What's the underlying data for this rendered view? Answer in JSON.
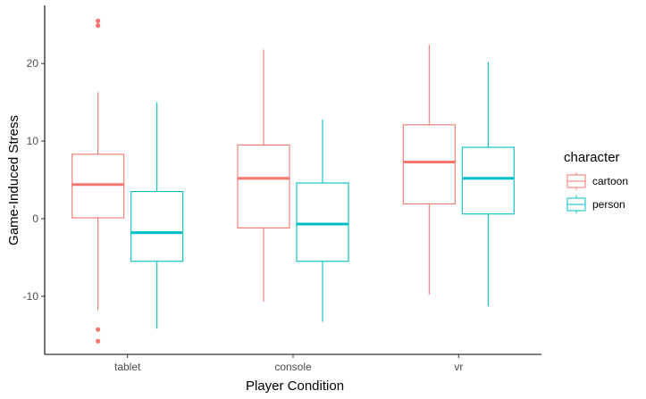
{
  "chart_data": {
    "type": "boxplot",
    "xlabel": "Player Condition",
    "ylabel": "Game-Induced Stress",
    "categories": [
      "tablet",
      "console",
      "vr"
    ],
    "y_ticks": [
      -10,
      0,
      10,
      20
    ],
    "y_tick_labels": [
      "-10",
      "0",
      "10",
      "20"
    ],
    "ylim": [
      -17.5,
      27.5
    ],
    "grid": false,
    "legend": {
      "title": "character",
      "position": "right"
    },
    "series": [
      {
        "name": "cartoon",
        "color": "#F8766D",
        "boxes": [
          {
            "category": "tablet",
            "whisker_low": -11.8,
            "q1": 0.1,
            "median": 4.4,
            "q3": 8.3,
            "whisker_high": 16.3,
            "outliers": [
              25.5,
              24.9,
              -14.3,
              -15.8
            ]
          },
          {
            "category": "console",
            "whisker_low": -10.7,
            "q1": -1.2,
            "median": 5.2,
            "q3": 9.5,
            "whisker_high": 21.8,
            "outliers": []
          },
          {
            "category": "vr",
            "whisker_low": -9.8,
            "q1": 1.9,
            "median": 7.3,
            "q3": 12.1,
            "whisker_high": 22.4,
            "outliers": []
          }
        ]
      },
      {
        "name": "person",
        "color": "#00BFC4",
        "boxes": [
          {
            "category": "tablet",
            "whisker_low": -14.2,
            "q1": -5.5,
            "median": -1.8,
            "q3": 3.5,
            "whisker_high": 15.0,
            "outliers": []
          },
          {
            "category": "console",
            "whisker_low": -13.3,
            "q1": -5.5,
            "median": -0.7,
            "q3": 4.6,
            "whisker_high": 12.8,
            "outliers": []
          },
          {
            "category": "vr",
            "whisker_low": -11.3,
            "q1": 0.6,
            "median": 5.2,
            "q3": 9.2,
            "whisker_high": 20.2,
            "outliers": []
          }
        ]
      }
    ]
  }
}
